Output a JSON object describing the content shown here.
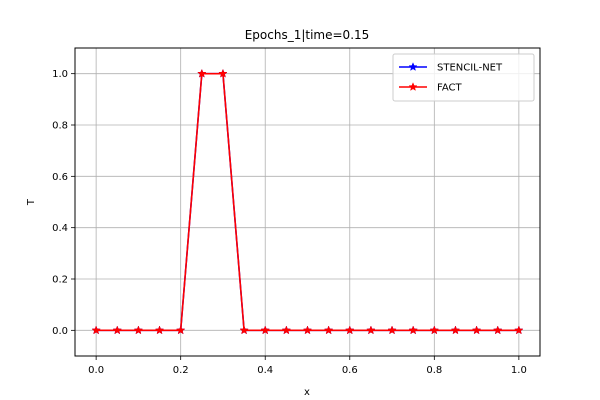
{
  "chart_data": {
    "type": "line",
    "title": "Epochs_1|time=0.15",
    "xlabel": "x",
    "ylabel": "T",
    "xlim": [
      -0.05,
      1.05
    ],
    "ylim": [
      -0.1,
      1.1
    ],
    "xticks": [
      0.0,
      0.2,
      0.4,
      0.6,
      0.8,
      1.0
    ],
    "xtick_labels": [
      "0.0",
      "0.2",
      "0.4",
      "0.6",
      "0.8",
      "1.0"
    ],
    "yticks": [
      0.0,
      0.2,
      0.4,
      0.6,
      0.8,
      1.0
    ],
    "ytick_labels": [
      "0.0",
      "0.2",
      "0.4",
      "0.6",
      "0.8",
      "1.0"
    ],
    "grid": true,
    "legend_position": "top-right",
    "x": [
      0.0,
      0.05,
      0.1,
      0.15,
      0.2,
      0.25,
      0.3,
      0.35,
      0.4,
      0.45,
      0.5,
      0.55,
      0.6,
      0.65,
      0.7,
      0.75,
      0.8,
      0.85,
      0.9,
      0.95,
      1.0
    ],
    "series": [
      {
        "name": "STENCIL-NET",
        "color": "#0000ff",
        "marker": "star",
        "values": [
          0,
          0,
          0,
          0,
          0,
          1,
          1,
          0,
          0,
          0,
          0,
          0,
          0,
          0,
          0,
          0,
          0,
          0,
          0,
          0,
          0
        ]
      },
      {
        "name": "FACT",
        "color": "#ff0000",
        "marker": "star",
        "values": [
          0,
          0,
          0,
          0,
          0,
          1,
          1,
          0,
          0,
          0,
          0,
          0,
          0,
          0,
          0,
          0,
          0,
          0,
          0,
          0,
          0
        ]
      }
    ]
  }
}
